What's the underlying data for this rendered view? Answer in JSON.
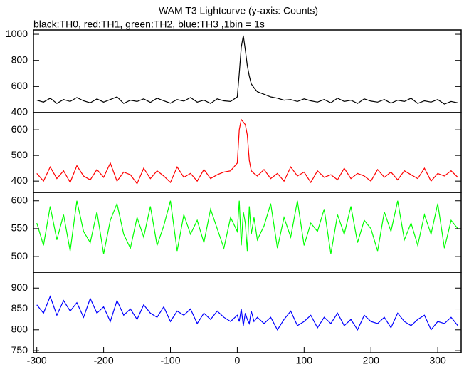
{
  "chart_data": [
    {
      "type": "line",
      "title": "WAM T3 Lightcurve (y-axis: Counts)",
      "subtitle": "black:TH0, red:TH1, green:TH2, blue:TH3 ,1bin = 1s",
      "xlim": [
        -305,
        335
      ],
      "ylim": [
        400,
        1033
      ],
      "yticks": [
        400,
        600,
        800,
        1000
      ],
      "x": [
        -300,
        -290,
        -280,
        -270,
        -260,
        -250,
        -240,
        -230,
        -220,
        -210,
        -200,
        -190,
        -180,
        -170,
        -160,
        -150,
        -140,
        -130,
        -120,
        -110,
        -100,
        -90,
        -80,
        -70,
        -60,
        -50,
        -40,
        -30,
        -20,
        -10,
        0,
        3,
        6,
        9,
        12,
        15,
        18,
        21,
        25,
        30,
        40,
        50,
        60,
        70,
        80,
        90,
        100,
        110,
        120,
        130,
        140,
        150,
        160,
        170,
        180,
        190,
        200,
        210,
        220,
        230,
        240,
        250,
        260,
        270,
        280,
        290,
        300,
        310,
        320,
        330
      ],
      "series": [
        {
          "name": "TH0",
          "color": "#000000",
          "values": [
            495,
            480,
            510,
            470,
            500,
            485,
            515,
            490,
            475,
            505,
            480,
            500,
            520,
            470,
            495,
            485,
            505,
            478,
            510,
            490,
            472,
            500,
            488,
            515,
            480,
            495,
            470,
            505,
            490,
            485,
            520,
            700,
            900,
            990,
            880,
            760,
            680,
            620,
            590,
            560,
            540,
            520,
            510,
            495,
            500,
            485,
            505,
            490,
            480,
            500,
            475,
            510,
            485,
            495,
            470,
            505,
            488,
            480,
            500,
            472,
            495,
            485,
            510,
            470,
            490,
            480,
            500,
            465,
            485,
            475
          ]
        }
      ]
    },
    {
      "type": "line",
      "xlim": [
        -305,
        335
      ],
      "ylim": [
        356,
        667
      ],
      "yticks": [
        400,
        500,
        600
      ],
      "x": [
        -300,
        -290,
        -280,
        -270,
        -260,
        -250,
        -240,
        -230,
        -220,
        -210,
        -200,
        -190,
        -180,
        -170,
        -160,
        -150,
        -140,
        -130,
        -120,
        -110,
        -100,
        -90,
        -80,
        -70,
        -60,
        -50,
        -40,
        -30,
        -20,
        -10,
        0,
        3,
        6,
        9,
        12,
        15,
        18,
        21,
        25,
        30,
        40,
        50,
        60,
        70,
        80,
        90,
        100,
        110,
        120,
        130,
        140,
        150,
        160,
        170,
        180,
        190,
        200,
        210,
        220,
        230,
        240,
        250,
        260,
        270,
        280,
        290,
        300,
        310,
        320,
        330
      ],
      "series": [
        {
          "name": "TH1",
          "color": "#ff0000",
          "values": [
            430,
            400,
            455,
            410,
            440,
            395,
            460,
            420,
            405,
            445,
            415,
            470,
            400,
            435,
            425,
            390,
            450,
            410,
            440,
            420,
            395,
            455,
            415,
            430,
            400,
            445,
            410,
            425,
            435,
            440,
            470,
            600,
            640,
            630,
            620,
            580,
            480,
            440,
            430,
            420,
            445,
            410,
            430,
            400,
            455,
            420,
            435,
            395,
            440,
            415,
            425,
            405,
            450,
            410,
            430,
            420,
            400,
            445,
            415,
            435,
            405,
            440,
            425,
            410,
            450,
            400,
            430,
            420,
            440,
            415
          ]
        }
      ]
    },
    {
      "type": "line",
      "xlim": [
        -305,
        335
      ],
      "ylim": [
        472,
        615
      ],
      "yticks": [
        500,
        550,
        600
      ],
      "x": [
        -300,
        -290,
        -280,
        -270,
        -260,
        -250,
        -240,
        -230,
        -220,
        -210,
        -200,
        -190,
        -180,
        -170,
        -160,
        -150,
        -140,
        -130,
        -120,
        -110,
        -100,
        -90,
        -80,
        -70,
        -60,
        -50,
        -40,
        -30,
        -20,
        -10,
        0,
        3,
        6,
        9,
        12,
        15,
        18,
        21,
        25,
        30,
        40,
        50,
        60,
        70,
        80,
        90,
        100,
        110,
        120,
        130,
        140,
        150,
        160,
        170,
        180,
        190,
        200,
        210,
        220,
        230,
        240,
        250,
        260,
        270,
        280,
        290,
        300,
        310,
        320,
        330
      ],
      "series": [
        {
          "name": "TH2",
          "color": "#00ff00",
          "values": [
            560,
            520,
            590,
            530,
            575,
            510,
            600,
            545,
            525,
            580,
            505,
            565,
            595,
            540,
            515,
            570,
            535,
            590,
            520,
            555,
            600,
            510,
            575,
            540,
            565,
            525,
            585,
            550,
            515,
            570,
            545,
            600,
            520,
            580,
            560,
            510,
            590,
            540,
            570,
            530,
            555,
            595,
            515,
            570,
            535,
            600,
            520,
            560,
            545,
            585,
            505,
            575,
            540,
            590,
            525,
            565,
            550,
            510,
            580,
            545,
            600,
            530,
            560,
            520,
            575,
            540,
            595,
            515,
            565,
            550
          ]
        }
      ]
    },
    {
      "type": "line",
      "xlim": [
        -305,
        335
      ],
      "ylim": [
        745,
        938
      ],
      "yticks": [
        750,
        800,
        850,
        900
      ],
      "xticks": [
        -300,
        -200,
        -100,
        0,
        100,
        200,
        300
      ],
      "x": [
        -300,
        -290,
        -280,
        -270,
        -260,
        -250,
        -240,
        -230,
        -220,
        -210,
        -200,
        -190,
        -180,
        -170,
        -160,
        -150,
        -140,
        -130,
        -120,
        -110,
        -100,
        -90,
        -80,
        -70,
        -60,
        -50,
        -40,
        -30,
        -20,
        -10,
        0,
        3,
        6,
        9,
        12,
        15,
        18,
        21,
        25,
        30,
        40,
        50,
        60,
        70,
        80,
        90,
        100,
        110,
        120,
        130,
        140,
        150,
        160,
        170,
        180,
        190,
        200,
        210,
        220,
        230,
        240,
        250,
        260,
        270,
        280,
        290,
        300,
        310,
        320,
        330
      ],
      "series": [
        {
          "name": "TH3",
          "color": "#0000ff",
          "values": [
            860,
            840,
            880,
            835,
            870,
            845,
            865,
            830,
            875,
            840,
            855,
            820,
            870,
            835,
            850,
            825,
            860,
            840,
            830,
            855,
            820,
            845,
            835,
            850,
            815,
            840,
            825,
            845,
            830,
            820,
            835,
            820,
            850,
            810,
            840,
            825,
            815,
            845,
            820,
            830,
            815,
            830,
            800,
            825,
            845,
            810,
            820,
            835,
            805,
            830,
            815,
            840,
            810,
            825,
            800,
            835,
            820,
            815,
            830,
            805,
            840,
            820,
            810,
            825,
            835,
            800,
            820,
            815,
            830,
            810
          ]
        }
      ]
    }
  ]
}
